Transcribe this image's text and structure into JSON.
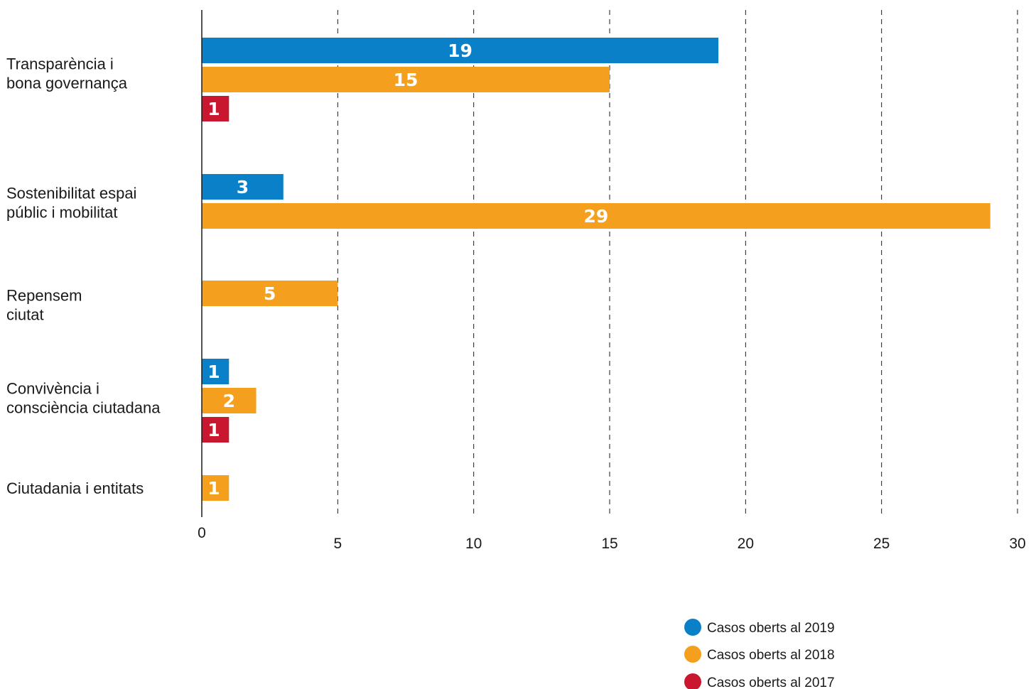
{
  "chart_data": {
    "type": "bar",
    "orientation": "horizontal",
    "title": "",
    "xlabel": "",
    "ylabel": "",
    "xlim": [
      0,
      30
    ],
    "xticks": [
      0,
      5,
      10,
      15,
      20,
      25,
      30
    ],
    "grid": "vertical dashed",
    "legend_position": "bottom-right",
    "categories": [
      [
        "Transparència i",
        "bona governança"
      ],
      [
        "Sostenibilitat espai",
        "públic i mobilitat"
      ],
      [
        "Repensem",
        "ciutat"
      ],
      [
        "Convivència i",
        "consciència ciutadana"
      ],
      [
        "Ciutadania i entitats"
      ]
    ],
    "series": [
      {
        "name": "Casos oberts al 2019",
        "color": "#0a80c8",
        "values": [
          19,
          3,
          null,
          1,
          null
        ]
      },
      {
        "name": "Casos oberts al 2018",
        "color": "#f4a01e",
        "values": [
          15,
          29,
          5,
          2,
          1
        ]
      },
      {
        "name": "Casos oberts al 2017",
        "color": "#c8172f",
        "values": [
          1,
          null,
          null,
          1,
          null
        ]
      }
    ]
  }
}
